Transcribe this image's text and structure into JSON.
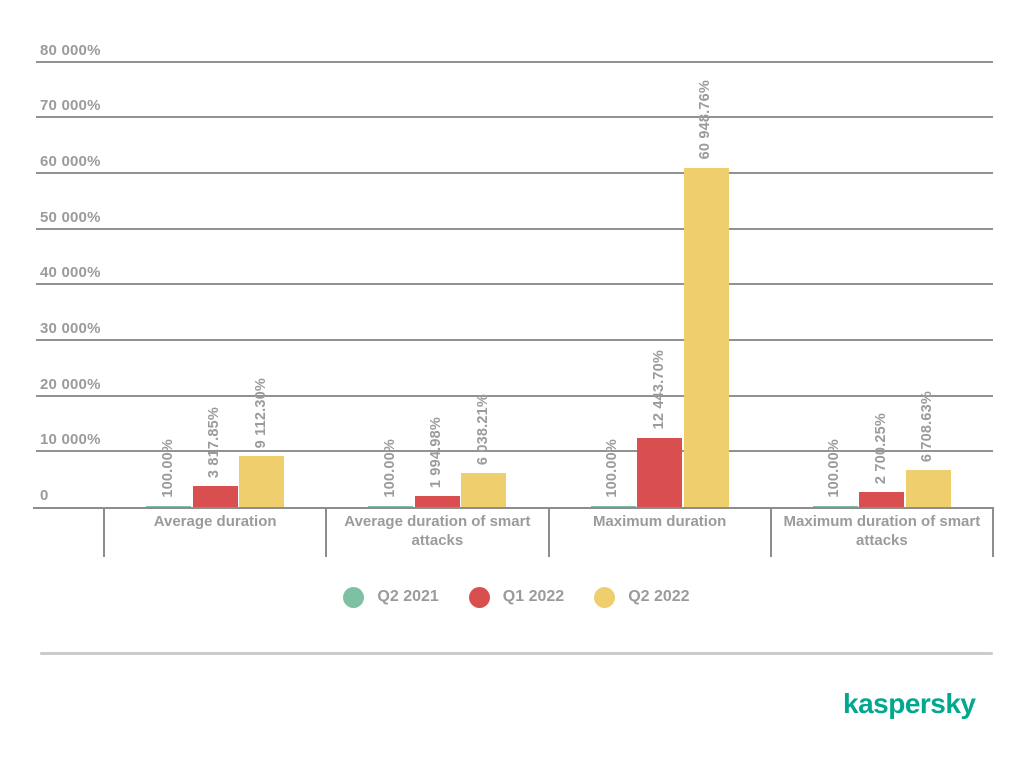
{
  "chart_data": {
    "type": "bar",
    "title": "",
    "xlabel": "",
    "ylabel": "",
    "categories": [
      "Average duration",
      "Average duration of smart attacks",
      "Maximum duration",
      "Maximum duration of smart attacks"
    ],
    "series": [
      {
        "name": "Q2 2021",
        "color": "#7EC0A2",
        "values": [
          100.0,
          100.0,
          100.0,
          100.0
        ],
        "labels": [
          "100.00%",
          "100.00%",
          "100.00%",
          "100.00%"
        ]
      },
      {
        "name": "Q1 2022",
        "color": "#D94F4F",
        "values": [
          3817.85,
          1994.98,
          12443.7,
          2700.25
        ],
        "labels": [
          "3 817.85%",
          "1 994.98%",
          "12 443.70%",
          "2 700.25%"
        ]
      },
      {
        "name": "Q2 2022",
        "color": "#EFCE6E",
        "values": [
          9112.3,
          6038.21,
          60948.76,
          6708.63
        ],
        "labels": [
          "9 112.30%",
          "6 038.21%",
          "60 948.76%",
          "6 708.63%"
        ]
      }
    ],
    "ylim": [
      0,
      80000
    ],
    "ytick_step": 10000,
    "yticks": [
      {
        "value": 80000,
        "label": "80 000%"
      },
      {
        "value": 70000,
        "label": "70 000%"
      },
      {
        "value": 60000,
        "label": "60 000%"
      },
      {
        "value": 50000,
        "label": "50 000%"
      },
      {
        "value": 40000,
        "label": "40 000%"
      },
      {
        "value": 30000,
        "label": "30 000%"
      },
      {
        "value": 20000,
        "label": "20 000%"
      },
      {
        "value": 10000,
        "label": "10 000%"
      },
      {
        "value": 0,
        "label": "0"
      }
    ],
    "grid": true,
    "value_labels_rotated": true,
    "legend_position": "bottom"
  },
  "colors": {
    "grid": "#929292",
    "axis": "#8d8d8d",
    "text": "#9b9b9b",
    "divider": "#cbcbcb",
    "brand": "#00A88E"
  },
  "footer": {
    "brand": "kaspersky"
  }
}
